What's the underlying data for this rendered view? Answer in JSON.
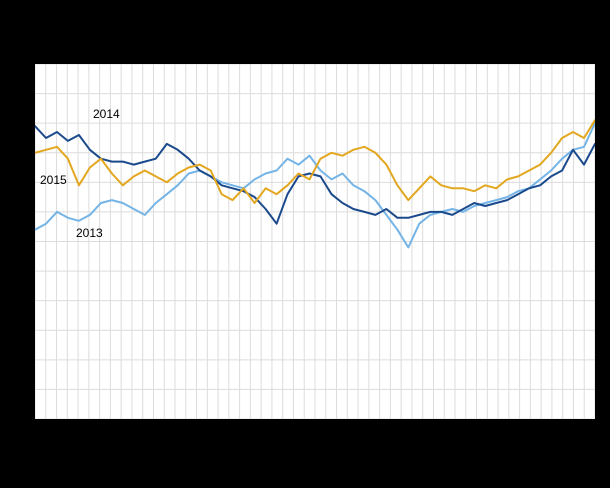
{
  "page": {
    "background": "#000000",
    "plot_background": "#ffffff"
  },
  "chart_data": {
    "type": "line",
    "title": "",
    "xlabel": "",
    "ylabel": "",
    "x_unit": "week",
    "n_points": 52,
    "ylim": [
      0,
      120
    ],
    "y_grid_step": 10,
    "grid": true,
    "grid_color": "#dcdcdc",
    "legend_position": "inline-labels",
    "annotations": [
      {
        "label": "2014"
      },
      {
        "label": "2015"
      },
      {
        "label": "2013"
      }
    ],
    "series": [
      {
        "name": "2013",
        "color": "#74b4e6",
        "values": [
          64,
          66,
          70,
          68,
          67,
          69,
          73,
          74,
          73,
          71,
          69,
          73,
          76,
          79,
          83,
          84,
          82,
          80,
          79,
          78,
          81,
          83,
          84,
          88,
          86,
          89,
          84,
          81,
          83,
          79,
          77,
          74,
          69,
          64,
          58,
          66,
          69,
          70,
          71,
          70,
          72,
          73,
          74,
          75,
          77,
          78,
          81,
          84,
          88,
          91,
          92,
          100
        ]
      },
      {
        "name": "2014",
        "color": "#1b4a8c",
        "values": [
          99,
          95,
          97,
          94,
          96,
          91,
          88,
          87,
          87,
          86,
          87,
          88,
          93,
          91,
          88,
          84,
          82,
          79,
          78,
          77,
          75,
          71,
          66,
          76,
          82,
          83,
          82,
          76,
          73,
          71,
          70,
          69,
          71,
          68,
          68,
          69,
          70,
          70,
          69,
          71,
          73,
          72,
          73,
          74,
          76,
          78,
          79,
          82,
          84,
          91,
          86,
          93
        ]
      },
      {
        "name": "2015",
        "color": "#e3a71f",
        "values": [
          90,
          91,
          92,
          88,
          79,
          85,
          88,
          83,
          79,
          82,
          84,
          82,
          80,
          83,
          85,
          86,
          84,
          76,
          74,
          78,
          73,
          78,
          76,
          79,
          83,
          81,
          88,
          90,
          89,
          91,
          92,
          90,
          86,
          79,
          74,
          78,
          82,
          79,
          78,
          78,
          77,
          79,
          78,
          81,
          82,
          84,
          86,
          90,
          95,
          97,
          95,
          101
        ]
      }
    ]
  }
}
